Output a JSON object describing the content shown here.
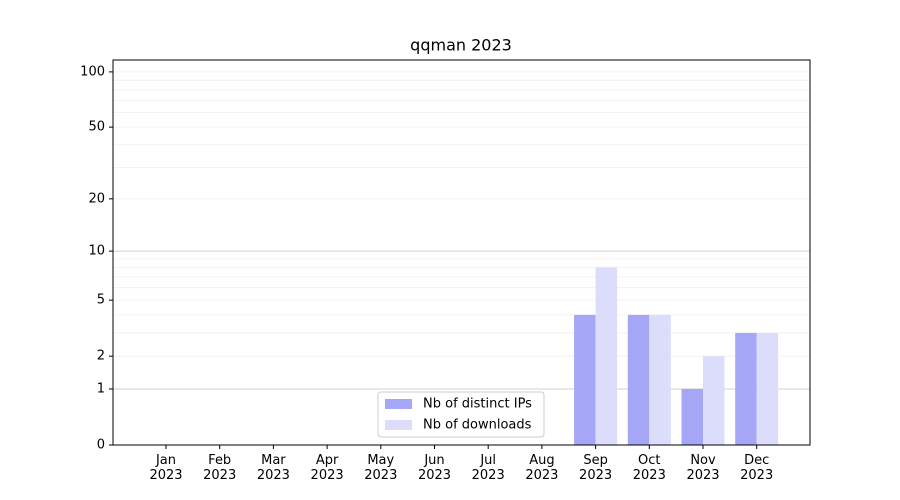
{
  "chart_data": {
    "type": "bar",
    "title": "qqman 2023",
    "categories": [
      "Jan\n2023",
      "Feb\n2023",
      "Mar\n2023",
      "Apr\n2023",
      "May\n2023",
      "Jun\n2023",
      "Jul\n2023",
      "Aug\n2023",
      "Sep\n2023",
      "Oct\n2023",
      "Nov\n2023",
      "Dec\n2023"
    ],
    "series": [
      {
        "name": "Nb of distinct IPs",
        "color": "#a6a6f6",
        "values": [
          0,
          0,
          0,
          0,
          0,
          0,
          0,
          0,
          4,
          4,
          1,
          3
        ]
      },
      {
        "name": "Nb of downloads",
        "color": "#dcdcfb",
        "values": [
          0,
          0,
          0,
          0,
          0,
          0,
          0,
          0,
          8,
          4,
          2,
          3
        ]
      }
    ],
    "yscale": "log1p",
    "ylim": [
      0,
      116
    ],
    "yticks": [
      0,
      1,
      2,
      5,
      10,
      20,
      50,
      100
    ],
    "major_grid": [
      1,
      10
    ],
    "minor_grid": [
      2,
      3,
      4,
      5,
      6,
      7,
      8,
      9,
      20,
      30,
      40,
      50,
      60,
      70,
      80,
      90,
      100
    ],
    "grid": true,
    "legend": "lower center"
  }
}
